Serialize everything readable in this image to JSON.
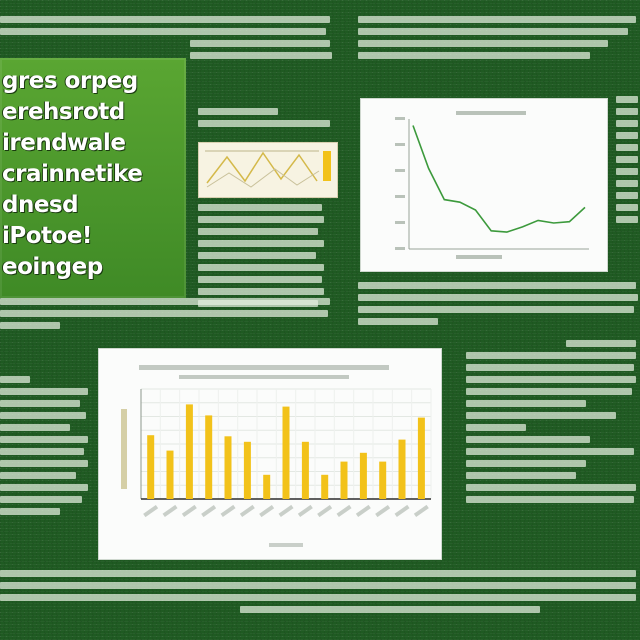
{
  "poster": {
    "title_lines": [
      "gres orpeg",
      "erehsrotd",
      "irendwale",
      "crainnetike",
      "dnesd",
      "iPotoe!",
      "eoingep"
    ]
  },
  "theme": {
    "background": "#1f5a22",
    "title_panel": "#4f9a2c",
    "line_color": "#3c9a3c",
    "bar_color": "#f2c21a"
  },
  "chart_data": [
    {
      "type": "line",
      "title": "",
      "xlabel": "",
      "ylabel": "",
      "x": [
        0,
        1,
        2,
        3,
        4,
        5,
        6,
        7,
        8,
        9,
        10,
        11
      ],
      "series": [
        {
          "values": [
            0.95,
            0.62,
            0.38,
            0.36,
            0.3,
            0.14,
            0.13,
            0.17,
            0.22,
            0.2,
            0.21,
            0.32
          ]
        }
      ],
      "ylim": [
        0,
        1
      ],
      "grid": false
    },
    {
      "type": "bar",
      "title": "",
      "xlabel": "",
      "ylabel": "",
      "categories": [
        "",
        "",
        "",
        "",
        "",
        "",
        "",
        "",
        "",
        "",
        "",
        "",
        "",
        "",
        ""
      ],
      "values": [
        0.58,
        0.44,
        0.86,
        0.76,
        0.57,
        0.52,
        0.22,
        0.84,
        0.52,
        0.22,
        0.34,
        0.42,
        0.34,
        0.54,
        0.74
      ],
      "ylim": [
        0,
        1
      ],
      "grid": true
    }
  ]
}
